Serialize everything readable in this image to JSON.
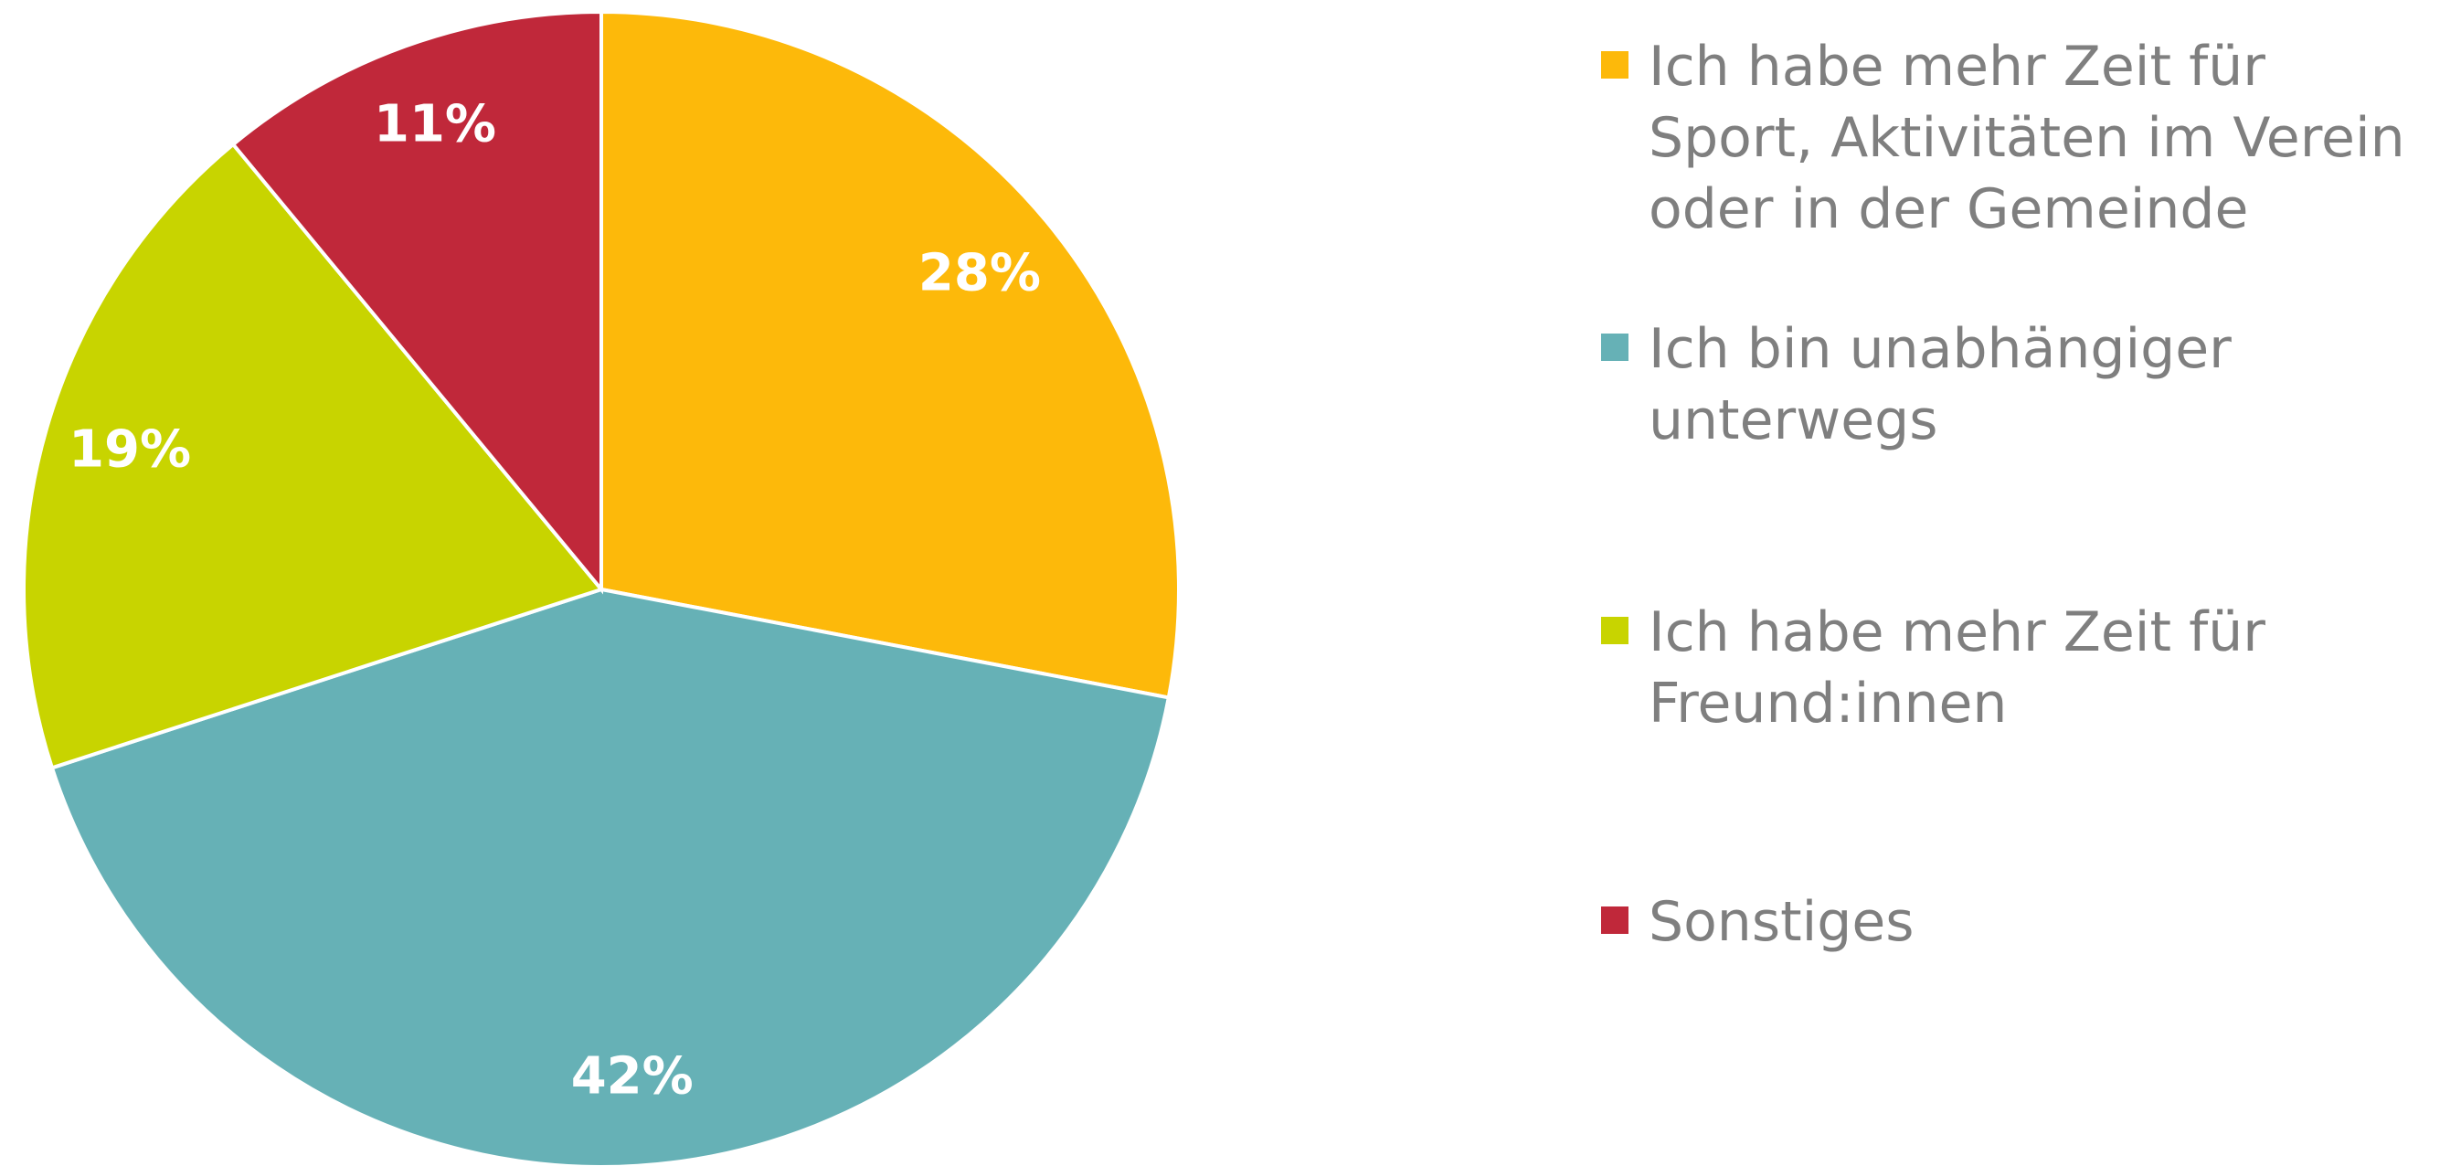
{
  "chart_data": {
    "type": "pie",
    "categories": [
      "Ich habe mehr Zeit für Sport, Aktivitäten im Verein oder in der Gemeinde",
      "Ich bin unabhängiger unterwegs",
      "Ich habe mehr Zeit für Freund:innen",
      "Sonstiges"
    ],
    "values": [
      28,
      42,
      19,
      11
    ],
    "value_labels": [
      "28%",
      "42%",
      "19%",
      "11%"
    ],
    "colors": [
      "#FDB90A",
      "#66B1B6",
      "#C8D400",
      "#C0283A"
    ],
    "legend": "right"
  }
}
